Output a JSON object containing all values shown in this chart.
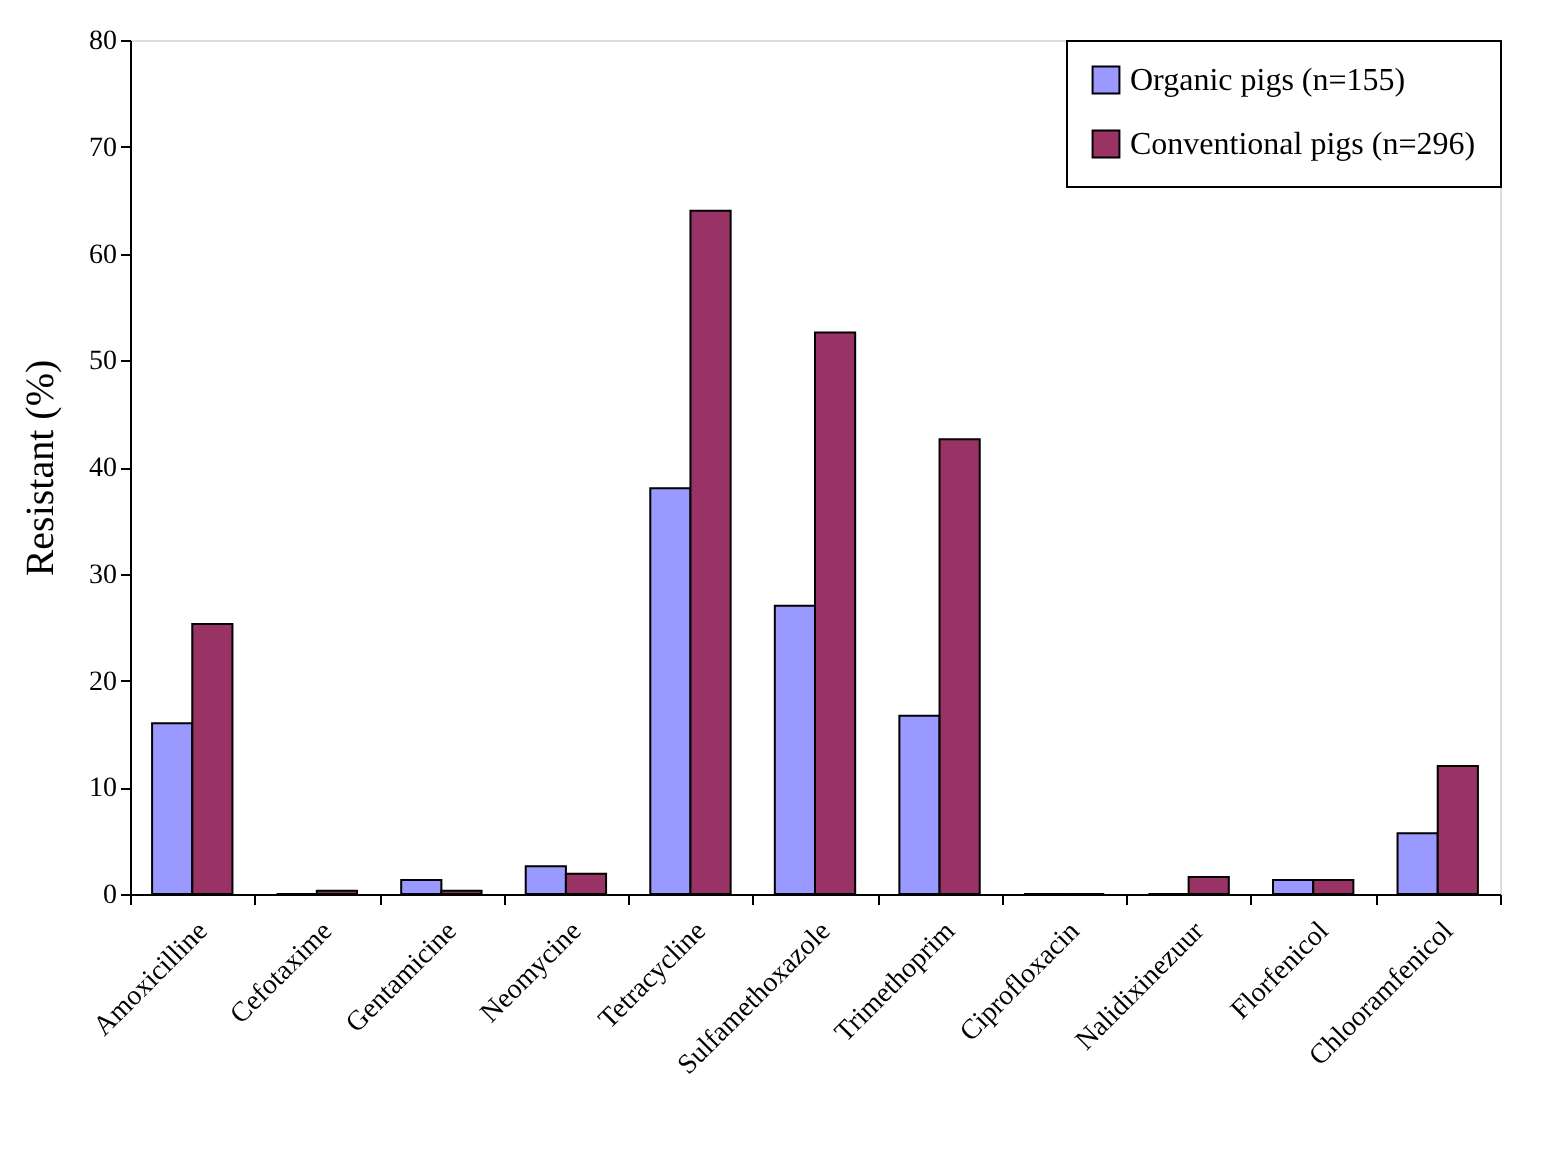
{
  "chart_data": {
    "type": "bar",
    "ylabel": "Resistant (%)",
    "categories": [
      "Amoxicilline",
      "Cefotaxime",
      "Gentamicine",
      "Neomycine",
      "Tetracycline",
      "Sulfamethoxazole",
      "Trimethoprim",
      "Ciprofloxacin",
      "Nalidixinezuur",
      "Florfenicol",
      "Chlooramfenicol"
    ],
    "series": [
      {
        "name": "Organic pigs (n=155)",
        "color": "#9999ff",
        "values": [
          16,
          0,
          1.3,
          2.6,
          38,
          27,
          16.7,
          0,
          0,
          1.3,
          5.7
        ]
      },
      {
        "name": "Conventional pigs (n=296)",
        "color": "#993366",
        "values": [
          25.3,
          0.3,
          0.3,
          1.9,
          64,
          52.6,
          42.6,
          0,
          1.6,
          1.3,
          12
        ]
      }
    ],
    "ylim": [
      0,
      80
    ],
    "yticks": [
      0,
      10,
      20,
      30,
      40,
      50,
      60,
      70,
      80
    ],
    "grid": false,
    "legend": "top right"
  }
}
